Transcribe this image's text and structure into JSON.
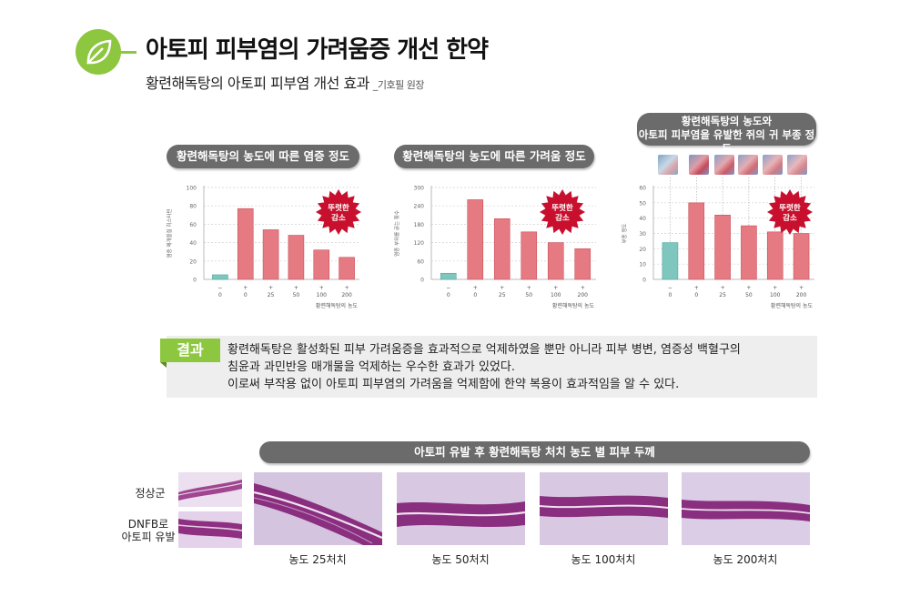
{
  "header": {
    "title": "아토피 피부염의 가려움증 개선 한약",
    "subtitle": "황련해독탕의 아토피 피부염 개선 효과",
    "author": "_기호필 원장"
  },
  "colors": {
    "accent_green": "#8dc63f",
    "bar_red": "#e57a82",
    "bar_teal": "#7fc7be",
    "pill_gray": "#6b6b6b",
    "burst_red": "#c8102e"
  },
  "chart_data": [
    {
      "type": "bar",
      "title": "황련해독탕의 농도에 따른 염증 정도",
      "ylabel": "염증 매개물질 히스타민",
      "xlabel": "황련해독탕의 농도",
      "ylim": [
        0,
        100
      ],
      "yticks": [
        "0",
        "20",
        "40",
        "60",
        "80",
        "100"
      ],
      "categories": [
        "0",
        "0",
        "25",
        "50",
        "100",
        "200"
      ],
      "markers": [
        "−",
        "+",
        "+",
        "+",
        "+",
        "+"
      ],
      "values": [
        5,
        77,
        54,
        48,
        32,
        24
      ],
      "badge": "뚜렷한 감소"
    },
    {
      "type": "bar",
      "title": "황련해독탕의 농도에 따른 가려움 정도",
      "ylabel": "염증 부위를 긁는 횟수",
      "xlabel": "황련해독탕의 농도",
      "ylim": [
        0,
        300
      ],
      "yticks": [
        "0",
        "60",
        "120",
        "180",
        "240",
        "300"
      ],
      "categories": [
        "0",
        "0",
        "25",
        "50",
        "100",
        "200"
      ],
      "markers": [
        "−",
        "+",
        "+",
        "+",
        "+",
        "+"
      ],
      "values": [
        20,
        260,
        198,
        155,
        120,
        100
      ],
      "badge": "뚜렷한 감소"
    },
    {
      "type": "bar",
      "title": "황련해독탕의 농도와 아토피 피부염을 유발한 쥐의 귀 부종 정도",
      "title_lines": [
        "황련해독탕의 농도와",
        "아토피 피부염을 유발한 쥐의 귀 부종 정도"
      ],
      "ylabel": "부종 정도",
      "xlabel": "황련해독탕의 농도",
      "ylim": [
        0,
        60
      ],
      "yticks": [
        "0",
        "10",
        "20",
        "30",
        "40",
        "50",
        "60"
      ],
      "categories": [
        "0",
        "0",
        "25",
        "50",
        "100",
        "200"
      ],
      "markers": [
        "−",
        "+",
        "+",
        "+",
        "+",
        "+"
      ],
      "values": [
        24,
        50,
        42,
        35,
        31,
        30
      ],
      "badge": "뚜렷한 감소"
    }
  ],
  "result": {
    "tag": "결과",
    "lines": [
      "황련해독탕은 활성화된 피부 가려움증을 효과적으로 억제하였을 뿐만 아니라 피부 병변, 염증성 백혈구의",
      "침윤과 과민반응 매개물을 억제하는 우수한 효과가 있었다.",
      "이로써 부작용 없이 아토피 피부염의 가려움을 억제함에 한약 복용이 효과적임을 알 수 있다."
    ]
  },
  "skin": {
    "title": "아토피 유발 후 황련해독탕 처치 농도 별 피부 두께",
    "normal_label": "정상군",
    "dnfb_label_lines": [
      "DNFB로",
      "아토피 유발"
    ],
    "captions": [
      "농도 25처치",
      "농도 50처치",
      "농도 100처치",
      "농도 200처치"
    ]
  }
}
